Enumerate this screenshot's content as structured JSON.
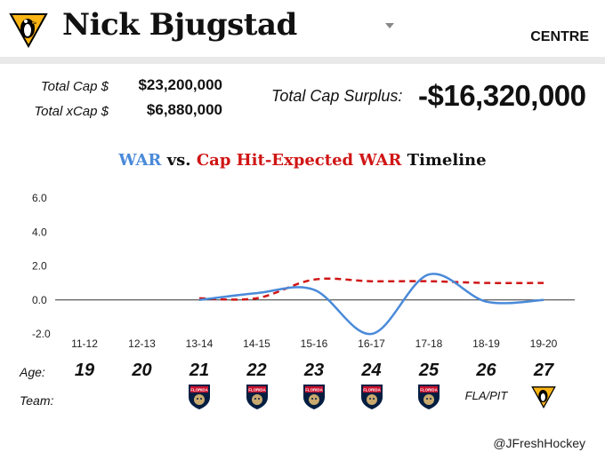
{
  "header": {
    "player_name": "Nick Bjugstad",
    "position": "CENTRE"
  },
  "cap": {
    "total_cap_label": "Total Cap $",
    "total_cap_value": "$23,200,000",
    "total_xcap_label": "Total xCap $",
    "total_xcap_value": "$6,880,000",
    "surplus_label": "Total Cap Surplus:",
    "surplus_value": "-$16,320,000"
  },
  "chart_title": {
    "part1": "WAR",
    "part2": "vs.",
    "part3": "Cap Hit-Expected WAR",
    "part4": "Timeline"
  },
  "colors": {
    "war": "#4a8ad9",
    "expected": "#d01515",
    "penguins_gold": "#fcb514",
    "panthers_red": "#c8102e",
    "panthers_navy": "#041e42"
  },
  "chart_data": {
    "type": "line",
    "title": "WAR vs. Cap Hit-Expected WAR Timeline",
    "categories": [
      "11-12",
      "12-13",
      "13-14",
      "14-15",
      "15-16",
      "16-17",
      "17-18",
      "18-19",
      "19-20"
    ],
    "ylim": [
      -2.0,
      6.0
    ],
    "yticks": [
      "6.0",
      "4.0",
      "2.0",
      "0.0",
      "-2.0"
    ],
    "series": [
      {
        "name": "WAR",
        "values": [
          null,
          null,
          0.0,
          0.4,
          0.6,
          -2.0,
          1.5,
          -0.1,
          0.0
        ]
      },
      {
        "name": "Cap Hit-Expected WAR",
        "values": [
          null,
          null,
          0.1,
          0.1,
          1.2,
          1.1,
          1.1,
          1.0,
          1.0
        ]
      }
    ],
    "grid": false
  },
  "rows": {
    "age_label": "Age:",
    "team_label": "Team:",
    "ages": [
      "19",
      "20",
      "21",
      "22",
      "23",
      "24",
      "25",
      "26",
      "27"
    ],
    "teams": [
      "",
      "",
      "FLA",
      "FLA",
      "FLA",
      "FLA",
      "FLA",
      "FLA/PIT",
      "PIT"
    ],
    "team_logo_text": "FLORIDA"
  },
  "credit": "@JFreshHockey"
}
